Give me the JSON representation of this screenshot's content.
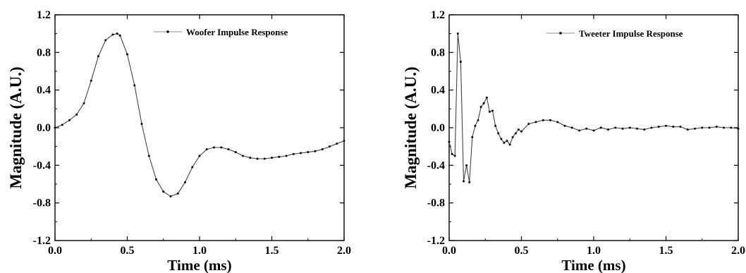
{
  "chart_data": [
    {
      "type": "line",
      "title": "",
      "xlabel": "Time (ms)",
      "ylabel": "Magnitude (A.U.)",
      "xlim": [
        0.0,
        2.0
      ],
      "ylim": [
        -1.2,
        1.2
      ],
      "xticks": [
        "0.0",
        "0.5",
        "1.0",
        "1.5",
        "2.0"
      ],
      "yticks": [
        "1.2",
        "0.8",
        "0.4",
        "0.0",
        "-0.4",
        "-0.8",
        "-1.2"
      ],
      "grid": false,
      "legend_position": "top-right",
      "series": [
        {
          "name": "Woofer Impulse Response",
          "color": "#444444",
          "marker": "dot",
          "x": [
            0.0,
            0.05,
            0.1,
            0.15,
            0.2,
            0.25,
            0.3,
            0.35,
            0.4,
            0.43,
            0.45,
            0.5,
            0.55,
            0.6,
            0.65,
            0.7,
            0.75,
            0.8,
            0.85,
            0.9,
            0.95,
            1.0,
            1.05,
            1.1,
            1.15,
            1.2,
            1.25,
            1.3,
            1.35,
            1.4,
            1.45,
            1.5,
            1.55,
            1.6,
            1.65,
            1.7,
            1.75,
            1.8,
            1.85,
            1.9,
            1.95,
            2.0
          ],
          "y": [
            0.0,
            0.03,
            0.08,
            0.14,
            0.26,
            0.5,
            0.76,
            0.93,
            0.99,
            1.0,
            0.98,
            0.78,
            0.45,
            0.04,
            -0.3,
            -0.55,
            -0.68,
            -0.73,
            -0.7,
            -0.58,
            -0.42,
            -0.3,
            -0.23,
            -0.21,
            -0.21,
            -0.23,
            -0.26,
            -0.3,
            -0.32,
            -0.33,
            -0.33,
            -0.32,
            -0.31,
            -0.3,
            -0.28,
            -0.27,
            -0.26,
            -0.25,
            -0.23,
            -0.2,
            -0.17,
            -0.14
          ]
        }
      ]
    },
    {
      "type": "line",
      "title": "",
      "xlabel": "Time (ms)",
      "ylabel": "Magnitude (A.U.)",
      "xlim": [
        0.0,
        2.0
      ],
      "ylim": [
        -1.2,
        1.2
      ],
      "xticks": [
        "0.0",
        "0.5",
        "1.0",
        "1.5",
        "2.0"
      ],
      "yticks": [
        "1.2",
        "0.8",
        "0.4",
        "0.0",
        "-0.4",
        "-0.8",
        "-1.2"
      ],
      "grid": false,
      "legend_position": "top-right",
      "series": [
        {
          "name": "Tweeter Impulse Response",
          "color": "#444444",
          "marker": "dot",
          "x": [
            0.0,
            0.02,
            0.04,
            0.06,
            0.08,
            0.1,
            0.12,
            0.14,
            0.16,
            0.18,
            0.2,
            0.22,
            0.24,
            0.26,
            0.28,
            0.3,
            0.32,
            0.34,
            0.36,
            0.38,
            0.4,
            0.42,
            0.44,
            0.46,
            0.48,
            0.5,
            0.55,
            0.6,
            0.65,
            0.7,
            0.75,
            0.8,
            0.85,
            0.9,
            0.95,
            1.0,
            1.05,
            1.1,
            1.15,
            1.2,
            1.25,
            1.3,
            1.35,
            1.4,
            1.45,
            1.5,
            1.55,
            1.6,
            1.65,
            1.7,
            1.75,
            1.8,
            1.85,
            1.9,
            1.95,
            2.0
          ],
          "y": [
            -0.15,
            -0.28,
            -0.3,
            1.0,
            0.7,
            -0.57,
            -0.4,
            -0.58,
            -0.1,
            0.02,
            0.08,
            0.22,
            0.26,
            0.32,
            0.17,
            0.18,
            0.02,
            -0.06,
            -0.12,
            -0.16,
            -0.14,
            -0.18,
            -0.1,
            -0.06,
            -0.02,
            -0.04,
            0.04,
            0.06,
            0.08,
            0.08,
            0.06,
            0.02,
            0.0,
            -0.03,
            -0.01,
            -0.03,
            0.0,
            -0.02,
            0.0,
            -0.01,
            0.0,
            -0.01,
            -0.02,
            0.0,
            0.01,
            0.02,
            0.01,
            0.01,
            -0.02,
            -0.01,
            0.0,
            0.0,
            0.01,
            0.0,
            0.0,
            -0.01
          ]
        }
      ]
    }
  ]
}
